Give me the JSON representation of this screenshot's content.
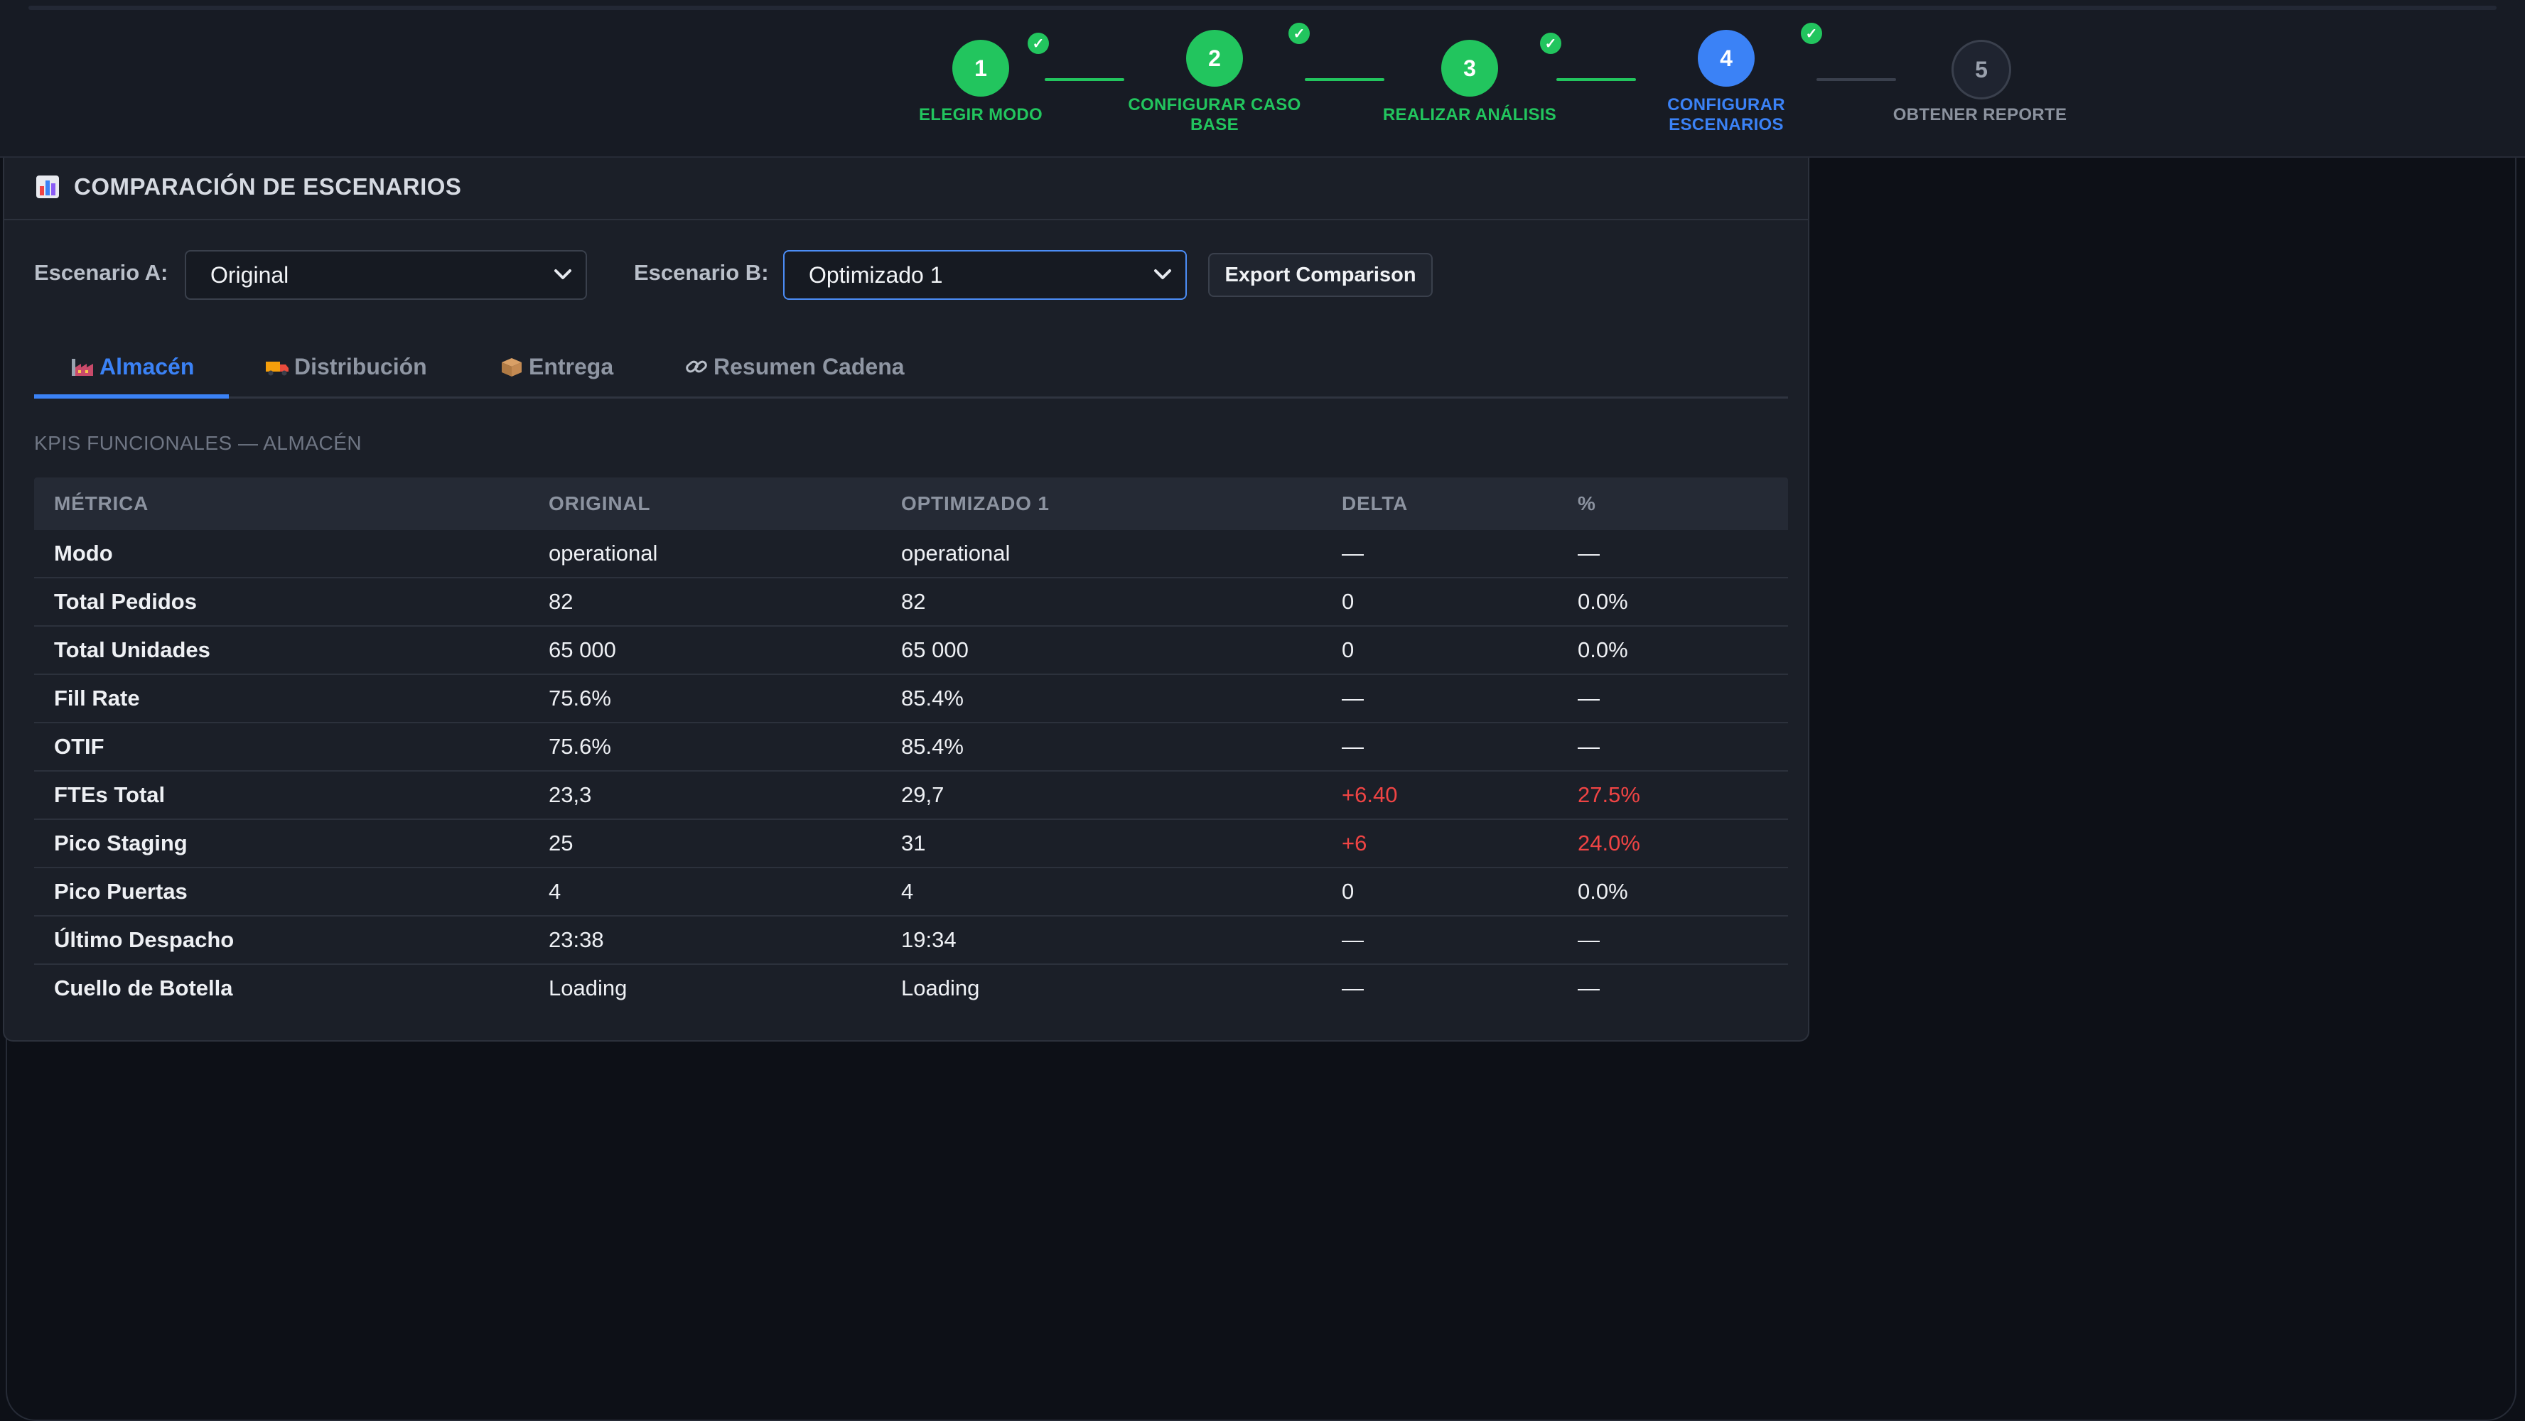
{
  "stepper": {
    "steps": [
      {
        "number": "1",
        "label": "ELEGIR MODO",
        "state": "done"
      },
      {
        "number": "2",
        "label": "CONFIGURAR CASO BASE",
        "state": "done"
      },
      {
        "number": "3",
        "label": "REALIZAR ANÁLISIS",
        "state": "done"
      },
      {
        "number": "4",
        "label": "CONFIGURAR ESCENARIOS",
        "state": "active"
      },
      {
        "number": "5",
        "label": "OBTENER REPORTE",
        "state": "pending"
      }
    ],
    "check_glyph": "✓"
  },
  "panel": {
    "icon": "bar-chart-icon",
    "title": "COMPARACIÓN DE ESCENARIOS",
    "scenario_a": {
      "label": "Escenario A:",
      "value": "Original"
    },
    "scenario_b": {
      "label": "Escenario B:",
      "value": "Optimizado 1"
    },
    "export_label": "Export Comparison",
    "tabs": [
      {
        "label": "Almacén",
        "icon": "factory-icon",
        "active": true
      },
      {
        "label": "Distribución",
        "icon": "truck-icon",
        "active": false
      },
      {
        "label": "Entrega",
        "icon": "package-icon",
        "active": false
      },
      {
        "label": "Resumen Cadena",
        "icon": "link-icon",
        "active": false
      }
    ],
    "section_title": "KPIS FUNCIONALES — ALMACÉN"
  },
  "table": {
    "headers": [
      "MÉTRICA",
      "ORIGINAL",
      "OPTIMIZADO 1",
      "DELTA",
      "%"
    ],
    "rows": [
      {
        "metric": "Modo",
        "original": "operational",
        "optimized": "operational",
        "delta": "—",
        "pct": "—",
        "negative": false
      },
      {
        "metric": "Total Pedidos",
        "original": "82",
        "optimized": "82",
        "delta": "0",
        "pct": "0.0%",
        "negative": false
      },
      {
        "metric": "Total Unidades",
        "original": "65 000",
        "optimized": "65 000",
        "delta": "0",
        "pct": "0.0%",
        "negative": false
      },
      {
        "metric": "Fill Rate",
        "original": "75.6%",
        "optimized": "85.4%",
        "delta": "—",
        "pct": "—",
        "negative": false
      },
      {
        "metric": "OTIF",
        "original": "75.6%",
        "optimized": "85.4%",
        "delta": "—",
        "pct": "—",
        "negative": false
      },
      {
        "metric": "FTEs Total",
        "original": "23,3",
        "optimized": "29,7",
        "delta": "+6.40",
        "pct": "27.5%",
        "negative": true
      },
      {
        "metric": "Pico Staging",
        "original": "25",
        "optimized": "31",
        "delta": "+6",
        "pct": "24.0%",
        "negative": true
      },
      {
        "metric": "Pico Puertas",
        "original": "4",
        "optimized": "4",
        "delta": "0",
        "pct": "0.0%",
        "negative": false
      },
      {
        "metric": "Último Despacho",
        "original": "23:38",
        "optimized": "19:34",
        "delta": "—",
        "pct": "—",
        "negative": false
      },
      {
        "metric": "Cuello de Botella",
        "original": "Loading",
        "optimized": "Loading",
        "delta": "—",
        "pct": "—",
        "negative": false
      }
    ]
  },
  "colors": {
    "done": "#22c55e",
    "active": "#3b82f6",
    "negative": "#ef4444",
    "background": "#0d1017",
    "panel": "#1b1f28"
  }
}
